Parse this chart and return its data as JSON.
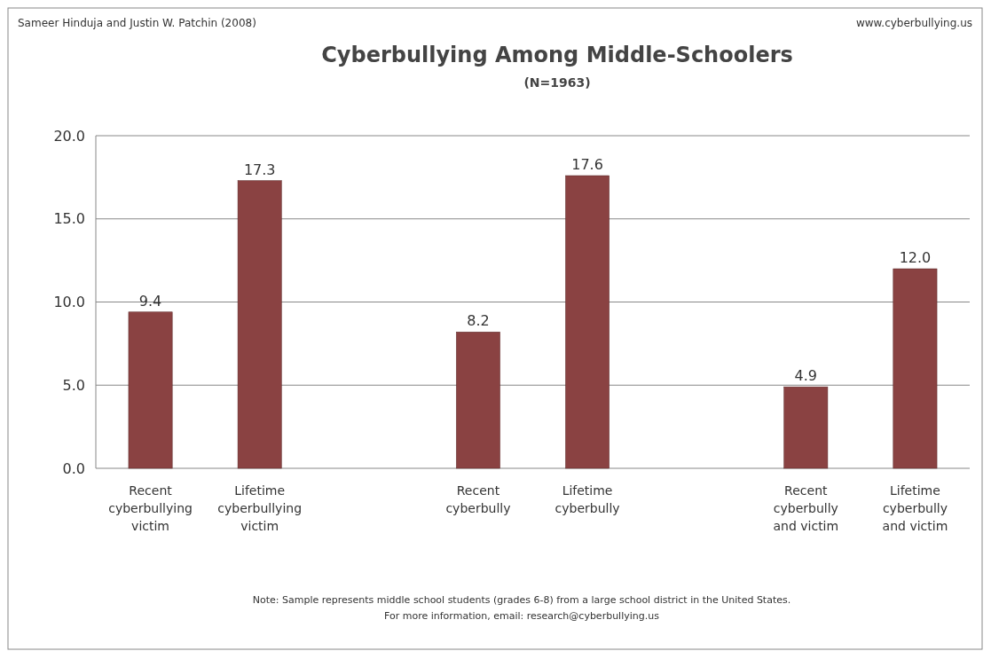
{
  "chart_data": {
    "type": "bar",
    "title": "Cyberbullying Among Middle-Schoolers",
    "subtitle": "(N=1963)",
    "categories": [
      "Recent cyberbullying victim",
      "Lifetime cyberbullying victim",
      null,
      "Recent cyberbully",
      "Lifetime cyberbully",
      null,
      "Recent cyberbully and victim",
      "Lifetime cyberbully and victim"
    ],
    "values": [
      9.4,
      17.3,
      null,
      8.2,
      17.6,
      null,
      4.9,
      12.0
    ],
    "color": "#8a4242",
    "value_labels": [
      "9.4",
      "17.3",
      null,
      "8.2",
      "17.6",
      null,
      "4.9",
      "12.0"
    ],
    "ylim": [
      0,
      20
    ],
    "yticks": [
      {
        "value": 0,
        "label": "0.0"
      },
      {
        "value": 5,
        "label": "5.0"
      },
      {
        "value": 10,
        "label": "10.0"
      },
      {
        "value": 15,
        "label": "15.0"
      },
      {
        "value": 20,
        "label": "20.0"
      }
    ],
    "grid": "y",
    "annotations": [
      "Sameer Hinduja and Justin W. Patchin (2008)",
      "www.cyberbullying.us",
      "Note: Sample represents middle school students (grades 6-8) from a large school district in the United States.",
      "For more information, email: research@cyberbullying.us"
    ]
  }
}
